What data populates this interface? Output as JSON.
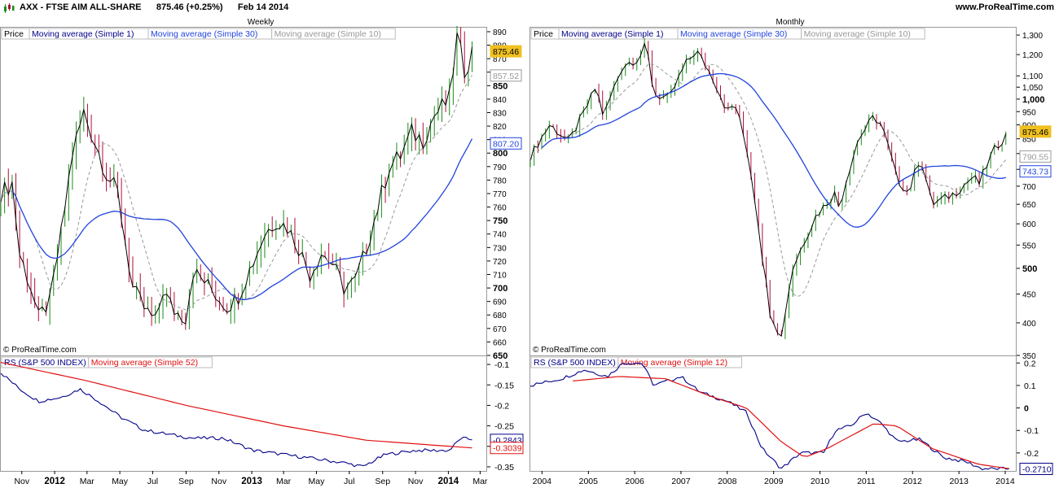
{
  "header": {
    "symbol": "AXX - FTSE AIM ALL-SHARE",
    "price": "875.46",
    "change": "(+0.25%)",
    "date": "Feb 14 2014",
    "website": "www.ProRealTime.com"
  },
  "colors": {
    "up_bar": "#1a8c1a",
    "down_bar": "#b0103a",
    "ma_short": "#999999",
    "ma_long": "#2244dd",
    "rs_line": "#000088",
    "rs_ma": "#e01010",
    "price_tag": "#f0c020"
  },
  "chart_data": [
    {
      "id": "weekly-price",
      "type": "bar",
      "period": "Weekly",
      "legend": [
        "Price",
        "Moving average (Simple 1)",
        "Moving average (Simple 30)",
        "Moving average (Simple 10)"
      ],
      "copyright": "© ProRealTime.com",
      "yticks": [
        650,
        660,
        670,
        680,
        690,
        700,
        710,
        720,
        730,
        740,
        750,
        760,
        770,
        780,
        790,
        800,
        810,
        820,
        830,
        840,
        850,
        860,
        870,
        880,
        890
      ],
      "yticks_bold": [
        650,
        700,
        750,
        800,
        850
      ],
      "ylim": [
        650,
        893
      ],
      "xlim": [
        "2011-09-23",
        "2014-03-14"
      ],
      "price_tags": [
        {
          "label": "875.46",
          "value": 875.46,
          "kind": "price"
        },
        {
          "label": "857.52",
          "value": 857.52,
          "kind": "ma_short"
        },
        {
          "label": "807.20",
          "value": 807.2,
          "kind": "ma_long"
        }
      ],
      "keypoints": [
        [
          "2011-09-23",
          770
        ],
        [
          "2011-10-14",
          778
        ],
        [
          "2011-10-28",
          725
        ],
        [
          "2011-11-18",
          700
        ],
        [
          "2011-12-02",
          678
        ],
        [
          "2011-12-23",
          690
        ],
        [
          "2012-01-13",
          740
        ],
        [
          "2012-02-03",
          800
        ],
        [
          "2012-02-24",
          830
        ],
        [
          "2012-03-16",
          808
        ],
        [
          "2012-04-06",
          785
        ],
        [
          "2012-04-27",
          770
        ],
        [
          "2012-05-11",
          735
        ],
        [
          "2012-05-25",
          700
        ],
        [
          "2012-06-15",
          685
        ],
        [
          "2012-07-06",
          675
        ],
        [
          "2012-07-20",
          698
        ],
        [
          "2012-08-10",
          683
        ],
        [
          "2012-08-31",
          678
        ],
        [
          "2012-09-14",
          712
        ],
        [
          "2012-10-05",
          705
        ],
        [
          "2012-10-26",
          695
        ],
        [
          "2012-11-16",
          686
        ],
        [
          "2012-12-07",
          694
        ],
        [
          "2013-01-04",
          720
        ],
        [
          "2013-01-25",
          740
        ],
        [
          "2013-02-15",
          750
        ],
        [
          "2013-03-08",
          745
        ],
        [
          "2013-03-29",
          730
        ],
        [
          "2013-04-19",
          710
        ],
        [
          "2013-05-10",
          726
        ],
        [
          "2013-05-31",
          718
        ],
        [
          "2013-06-21",
          700
        ],
        [
          "2013-07-12",
          705
        ],
        [
          "2013-08-02",
          730
        ],
        [
          "2013-08-23",
          760
        ],
        [
          "2013-09-13",
          790
        ],
        [
          "2013-10-04",
          798
        ],
        [
          "2013-10-25",
          815
        ],
        [
          "2013-11-15",
          810
        ],
        [
          "2013-12-06",
          828
        ],
        [
          "2014-01-03",
          840
        ],
        [
          "2014-01-17",
          885
        ],
        [
          "2014-01-31",
          862
        ],
        [
          "2014-02-14",
          875
        ]
      ]
    },
    {
      "id": "weekly-rs",
      "type": "line",
      "legend": [
        "RS (S&P 500 INDEX)",
        "Moving average (Simple 52)"
      ],
      "yticks": [
        -0.35,
        -0.3,
        -0.25,
        -0.2,
        -0.15,
        -0.1
      ],
      "ylim": [
        -0.36,
        -0.08
      ],
      "xlim": [
        "2011-09-23",
        "2014-03-14"
      ],
      "xticks": [
        {
          "label": "Nov",
          "date": "2011-11-01"
        },
        {
          "label": "2012",
          "date": "2012-01-01",
          "bold": true
        },
        {
          "label": "Mar",
          "date": "2012-03-01"
        },
        {
          "label": "May",
          "date": "2012-05-01"
        },
        {
          "label": "Jul",
          "date": "2012-07-01"
        },
        {
          "label": "Sep",
          "date": "2012-09-01"
        },
        {
          "label": "Nov",
          "date": "2012-11-01"
        },
        {
          "label": "2013",
          "date": "2013-01-01",
          "bold": true
        },
        {
          "label": "Mar",
          "date": "2013-03-01"
        },
        {
          "label": "May",
          "date": "2013-05-01"
        },
        {
          "label": "Jul",
          "date": "2013-07-01"
        },
        {
          "label": "Sep",
          "date": "2013-09-01"
        },
        {
          "label": "Nov",
          "date": "2013-11-01"
        },
        {
          "label": "2014",
          "date": "2014-01-01",
          "bold": true
        },
        {
          "label": "Mar",
          "date": "2014-03-01"
        }
      ],
      "value_tags": [
        {
          "label": "-0.2843",
          "value": -0.2843,
          "kind": "rs"
        },
        {
          "label": "-0.3039",
          "value": -0.3039,
          "kind": "rs_ma"
        }
      ],
      "rs_keypoints": [
        [
          "2011-09-23",
          -0.12
        ],
        [
          "2011-10-28",
          -0.16
        ],
        [
          "2011-12-02",
          -0.19
        ],
        [
          "2012-01-13",
          -0.18
        ],
        [
          "2012-02-17",
          -0.16
        ],
        [
          "2012-03-23",
          -0.19
        ],
        [
          "2012-05-04",
          -0.23
        ],
        [
          "2012-06-15",
          -0.26
        ],
        [
          "2012-07-27",
          -0.27
        ],
        [
          "2012-09-14",
          -0.28
        ],
        [
          "2012-11-09",
          -0.28
        ],
        [
          "2013-01-04",
          -0.31
        ],
        [
          "2013-03-01",
          -0.32
        ],
        [
          "2013-04-26",
          -0.33
        ],
        [
          "2013-06-21",
          -0.34
        ],
        [
          "2013-07-26",
          -0.35
        ],
        [
          "2013-09-06",
          -0.32
        ],
        [
          "2013-11-01",
          -0.31
        ],
        [
          "2014-01-03",
          -0.31
        ],
        [
          "2014-01-24",
          -0.28
        ],
        [
          "2014-02-14",
          -0.284
        ]
      ],
      "ma_keypoints": [
        [
          "2011-09-23",
          -0.095
        ],
        [
          "2012-03-01",
          -0.14
        ],
        [
          "2012-09-01",
          -0.2
        ],
        [
          "2013-03-01",
          -0.25
        ],
        [
          "2013-08-01",
          -0.285
        ],
        [
          "2014-02-14",
          -0.3039
        ]
      ]
    },
    {
      "id": "monthly-price",
      "type": "bar",
      "period": "Monthly",
      "legend": [
        "Price",
        "Moving average (Simple 1)",
        "Moving average (Simple 30)",
        "Moving average (Simple 10)"
      ],
      "copyright": "© ProRealTime.com",
      "yscale": "log",
      "yticks": [
        350,
        400,
        450,
        500,
        550,
        600,
        650,
        700,
        750,
        800,
        850,
        900,
        950,
        1000,
        1050,
        1100,
        1200,
        1300
      ],
      "ytick_labels": [
        "350",
        "400",
        "450",
        "500",
        "550",
        "600",
        "650",
        "700",
        "750",
        "800",
        "850",
        "900",
        "950",
        "1,000",
        "1,050",
        "1,100",
        "1,200",
        "1,300"
      ],
      "yticks_bold": [
        500,
        1000
      ],
      "ylim": [
        350,
        1340
      ],
      "xlim": [
        "2003-10-01",
        "2014-04-01"
      ],
      "price_tags": [
        {
          "label": "875.46",
          "value": 875.46,
          "kind": "price"
        },
        {
          "label": "790.55",
          "value": 790.55,
          "kind": "ma_short"
        },
        {
          "label": "743.73",
          "value": 743.73,
          "kind": "ma_long"
        }
      ],
      "keypoints": [
        [
          "2003-10-01",
          790
        ],
        [
          "2004-03-01",
          900
        ],
        [
          "2004-08-01",
          840
        ],
        [
          "2004-12-01",
          950
        ],
        [
          "2005-03-01",
          1050
        ],
        [
          "2005-05-01",
          930
        ],
        [
          "2005-10-01",
          1150
        ],
        [
          "2006-02-01",
          1180
        ],
        [
          "2006-04-01",
          1250
        ],
        [
          "2006-06-01",
          1020
        ],
        [
          "2006-10-01",
          1000
        ],
        [
          "2007-02-01",
          1150
        ],
        [
          "2007-05-01",
          1220
        ],
        [
          "2007-09-01",
          1100
        ],
        [
          "2008-01-01",
          950
        ],
        [
          "2008-03-01",
          980
        ],
        [
          "2008-06-01",
          820
        ],
        [
          "2008-10-01",
          530
        ],
        [
          "2008-12-01",
          420
        ],
        [
          "2009-03-01",
          375
        ],
        [
          "2009-06-01",
          500
        ],
        [
          "2009-12-01",
          620
        ],
        [
          "2010-05-01",
          680
        ],
        [
          "2010-06-01",
          640
        ],
        [
          "2010-11-01",
          850
        ],
        [
          "2011-03-01",
          930
        ],
        [
          "2011-05-01",
          900
        ],
        [
          "2011-09-01",
          720
        ],
        [
          "2011-12-01",
          680
        ],
        [
          "2012-03-01",
          790
        ],
        [
          "2012-06-01",
          650
        ],
        [
          "2012-12-01",
          680
        ],
        [
          "2013-05-01",
          730
        ],
        [
          "2013-06-01",
          700
        ],
        [
          "2013-10-01",
          810
        ],
        [
          "2014-02-01",
          875
        ]
      ]
    },
    {
      "id": "monthly-rs",
      "type": "line",
      "legend": [
        "RS (S&P 500 INDEX)",
        "Moving average (Simple 12)"
      ],
      "yticks": [
        -0.2,
        -0.1,
        0,
        0.1,
        0.2
      ],
      "ytick_labels": [
        "-0.2",
        "-0.1",
        "0",
        "0.1",
        "0.2"
      ],
      "ylim": [
        -0.28,
        0.23
      ],
      "xlim": [
        "2003-10-01",
        "2014-04-01"
      ],
      "xticks": [
        {
          "label": "2004",
          "date": "2004-01-01"
        },
        {
          "label": "2005",
          "date": "2005-01-01"
        },
        {
          "label": "2006",
          "date": "2006-01-01"
        },
        {
          "label": "2007",
          "date": "2007-01-01"
        },
        {
          "label": "2008",
          "date": "2008-01-01"
        },
        {
          "label": "2009",
          "date": "2009-01-01"
        },
        {
          "label": "2010",
          "date": "2010-01-01"
        },
        {
          "label": "2011",
          "date": "2011-01-01"
        },
        {
          "label": "2012",
          "date": "2012-01-01"
        },
        {
          "label": "2013",
          "date": "2013-01-01"
        },
        {
          "label": "2014",
          "date": "2014-01-01"
        }
      ],
      "value_tags": [
        {
          "label": "-0.2710",
          "value": -0.271,
          "kind": "rs"
        }
      ],
      "rs_keypoints": [
        [
          "2003-10-01",
          0.1
        ],
        [
          "2004-06-01",
          0.13
        ],
        [
          "2004-12-01",
          0.17
        ],
        [
          "2005-06-01",
          0.14
        ],
        [
          "2005-10-01",
          0.2
        ],
        [
          "2006-03-01",
          0.2
        ],
        [
          "2006-06-01",
          0.1
        ],
        [
          "2007-01-01",
          0.14
        ],
        [
          "2007-06-01",
          0.07
        ],
        [
          "2008-01-01",
          0.03
        ],
        [
          "2008-06-01",
          -0.02
        ],
        [
          "2008-10-01",
          -0.18
        ],
        [
          "2009-03-01",
          -0.27
        ],
        [
          "2009-08-01",
          -0.2
        ],
        [
          "2010-02-01",
          -0.2
        ],
        [
          "2010-05-01",
          -0.1
        ],
        [
          "2010-09-01",
          -0.08
        ],
        [
          "2011-01-01",
          -0.02
        ],
        [
          "2011-05-01",
          -0.07
        ],
        [
          "2011-09-01",
          -0.15
        ],
        [
          "2012-03-01",
          -0.14
        ],
        [
          "2012-09-01",
          -0.22
        ],
        [
          "2013-03-01",
          -0.24
        ],
        [
          "2013-07-01",
          -0.27
        ],
        [
          "2014-02-01",
          -0.271
        ]
      ],
      "ma_keypoints": [
        [
          "2004-09-01",
          0.12
        ],
        [
          "2005-09-01",
          0.14
        ],
        [
          "2006-09-01",
          0.13
        ],
        [
          "2007-09-01",
          0.05
        ],
        [
          "2008-06-01",
          0.0
        ],
        [
          "2009-03-01",
          -0.15
        ],
        [
          "2009-09-01",
          -0.22
        ],
        [
          "2010-03-01",
          -0.18
        ],
        [
          "2011-03-01",
          -0.07
        ],
        [
          "2011-09-01",
          -0.08
        ],
        [
          "2012-06-01",
          -0.18
        ],
        [
          "2013-06-01",
          -0.25
        ],
        [
          "2014-02-01",
          -0.27
        ]
      ]
    }
  ]
}
